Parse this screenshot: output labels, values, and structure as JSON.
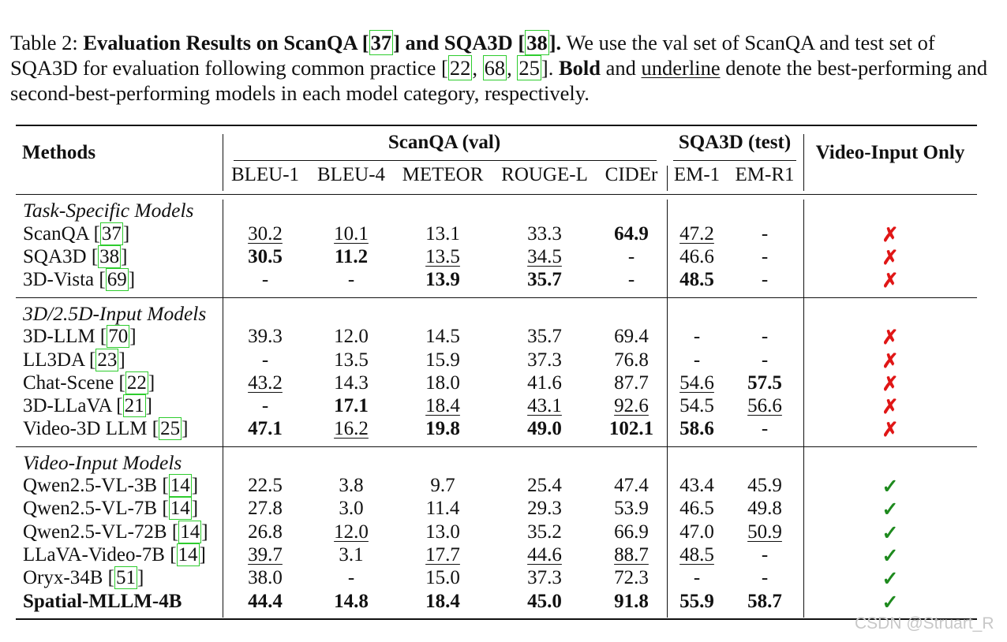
{
  "caption": {
    "prefix": "Table 2: ",
    "bold1": "Evaluation Results on ScanQA [",
    "cite_scanqa": "37",
    "bold2": "] and SQA3D [",
    "cite_sqa3d": "38",
    "bold3": "].",
    "text1": " We use the val set of ScanQA and test set of SQA3D for evaluation following common practice [",
    "cite_a": "22",
    "cite_b": "68",
    "cite_c": "25",
    "text2": "]. ",
    "bold_word": "Bold",
    "text3": " and ",
    "underline_word": "underline",
    "text4": " denote the best-performing and second-best-performing models in each model category, respectively."
  },
  "header": {
    "methods": "Methods",
    "scanqa_group": "ScanQA (val)",
    "sqa3d_group": "SQA3D (test)",
    "video_only": "Video-Input Only",
    "metrics": [
      "BLEU-1",
      "BLEU-4",
      "METEOR",
      "ROUGE-L",
      "CIDEr",
      "EM-1",
      "EM-R1"
    ]
  },
  "sections": [
    {
      "title": "Task-Specific Models",
      "rows": [
        {
          "name": "ScanQA [",
          "cite": "37",
          "tail": "]",
          "vals": [
            "30.2",
            "10.1",
            "13.1",
            "33.3",
            "64.9",
            "47.2",
            "-"
          ],
          "bold": [
            4
          ],
          "under": [
            0,
            1,
            5
          ],
          "video_only": "✗"
        },
        {
          "name": "SQA3D [",
          "cite": "38",
          "tail": "]",
          "vals": [
            "30.5",
            "11.2",
            "13.5",
            "34.5",
            "-",
            "46.6",
            "-"
          ],
          "bold": [
            0,
            1
          ],
          "under": [
            2,
            3
          ],
          "video_only": "✗"
        },
        {
          "name": "3D-Vista [",
          "cite": "69",
          "tail": "]",
          "vals": [
            "-",
            "-",
            "13.9",
            "35.7",
            "-",
            "48.5",
            "-"
          ],
          "bold": [
            2,
            3,
            5
          ],
          "under": [],
          "video_only": "✗"
        }
      ]
    },
    {
      "title": "3D/2.5D-Input Models",
      "rows": [
        {
          "name": "3D-LLM [",
          "cite": "70",
          "tail": "]",
          "vals": [
            "39.3",
            "12.0",
            "14.5",
            "35.7",
            "69.4",
            "-",
            "-"
          ],
          "bold": [],
          "under": [],
          "video_only": "✗"
        },
        {
          "name": "LL3DA [",
          "cite": "23",
          "tail": "]",
          "vals": [
            "-",
            "13.5",
            "15.9",
            "37.3",
            "76.8",
            "-",
            "-"
          ],
          "bold": [],
          "under": [],
          "video_only": "✗"
        },
        {
          "name": "Chat-Scene [",
          "cite": "22",
          "tail": "]",
          "vals": [
            "43.2",
            "14.3",
            "18.0",
            "41.6",
            "87.7",
            "54.6",
            "57.5"
          ],
          "bold": [
            6
          ],
          "under": [
            0,
            5
          ],
          "video_only": "✗"
        },
        {
          "name": "3D-LLaVA [",
          "cite": "21",
          "tail": "]",
          "vals": [
            "-",
            "17.1",
            "18.4",
            "43.1",
            "92.6",
            "54.5",
            "56.6"
          ],
          "bold": [
            1
          ],
          "under": [
            2,
            3,
            4,
            6
          ],
          "video_only": "✗"
        },
        {
          "name": "Video-3D LLM [",
          "cite": "25",
          "tail": "]",
          "vals": [
            "47.1",
            "16.2",
            "19.8",
            "49.0",
            "102.1",
            "58.6",
            "-"
          ],
          "bold": [
            0,
            2,
            3,
            4,
            5
          ],
          "under": [
            1
          ],
          "video_only": "✗"
        }
      ]
    },
    {
      "title": "Video-Input Models",
      "rows": [
        {
          "name": "Qwen2.5-VL-3B [",
          "cite": "14",
          "tail": "]",
          "vals": [
            "22.5",
            "3.8",
            "9.7",
            "25.4",
            "47.4",
            "43.4",
            "45.9"
          ],
          "bold": [],
          "under": [],
          "video_only": "✓"
        },
        {
          "name": "Qwen2.5-VL-7B [",
          "cite": "14",
          "tail": "]",
          "vals": [
            "27.8",
            "3.0",
            "11.4",
            "29.3",
            "53.9",
            "46.5",
            "49.8"
          ],
          "bold": [],
          "under": [],
          "video_only": "✓"
        },
        {
          "name": "Qwen2.5-VL-72B [",
          "cite": "14",
          "tail": "]",
          "vals": [
            "26.8",
            "12.0",
            "13.0",
            "35.2",
            "66.9",
            "47.0",
            "50.9"
          ],
          "bold": [],
          "under": [
            1,
            6
          ],
          "video_only": "✓"
        },
        {
          "name": "LLaVA-Video-7B [",
          "cite": "14",
          "tail": "]",
          "vals": [
            "39.7",
            "3.1",
            "17.7",
            "44.6",
            "88.7",
            "48.5",
            "-"
          ],
          "bold": [],
          "under": [
            0,
            2,
            3,
            4,
            5
          ],
          "video_only": "✓"
        },
        {
          "name": "Oryx-34B [",
          "cite": "51",
          "tail": "]",
          "vals": [
            "38.0",
            "-",
            "15.0",
            "37.3",
            "72.3",
            "-",
            "-"
          ],
          "bold": [],
          "under": [],
          "video_only": "✓"
        },
        {
          "name": "Spatial-MLLM-4B",
          "cite": "",
          "tail": "",
          "name_bold": true,
          "vals": [
            "44.4",
            "14.8",
            "18.4",
            "45.0",
            "91.8",
            "55.9",
            "58.7"
          ],
          "bold": [
            0,
            1,
            2,
            3,
            4,
            5,
            6
          ],
          "under": [],
          "video_only": "✓"
        }
      ]
    }
  ],
  "watermark": "CSDN @Struart_R"
}
